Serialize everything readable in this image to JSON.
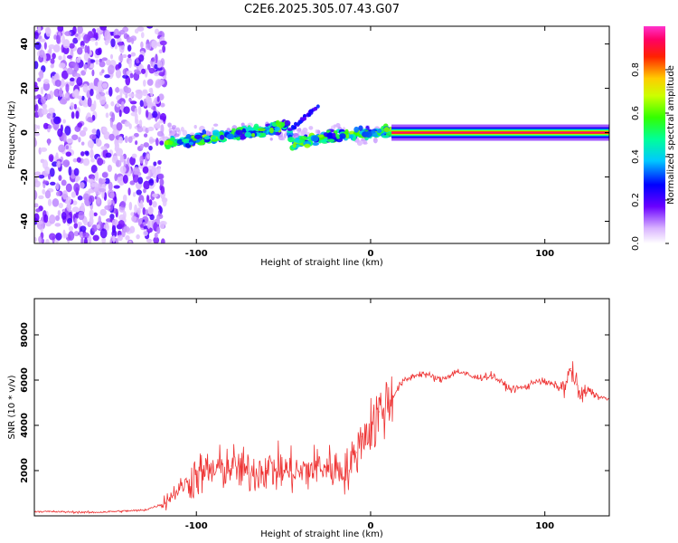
{
  "title": "C2E6.2025.305.07.43.G07",
  "colors": {
    "background": "#ffffff",
    "snr_line": "#ee3333",
    "spectrum_low": "#e6ccff",
    "spectrum_mid": "#4400ee"
  },
  "chart_data": [
    {
      "type": "heatmap",
      "title": "C2E6.2025.305.07.43.G07",
      "xlabel": "Height of straight line (km)",
      "ylabel": "Frequency (Hz)",
      "xlim": [
        -193,
        137
      ],
      "ylim": [
        -50,
        48
      ],
      "xticks": [
        -100,
        0,
        100
      ],
      "yticks": [
        -40,
        -20,
        0,
        20,
        40
      ],
      "grid": false,
      "colorbar": {
        "label": "Normalized spectral amplitude",
        "range": [
          0,
          1
        ],
        "ticks": [
          "0.0",
          "0.2",
          "0.4",
          "0.6",
          "0.8"
        ],
        "colormap": "rainbow (white-violet-blue-cyan-green-yellow-red-magenta)"
      },
      "features": {
        "noise_region_x": [
          -193,
          -118
        ],
        "signal_track": [
          {
            "x": -117,
            "y": -5
          },
          {
            "x": -100,
            "y": -3
          },
          {
            "x": -80,
            "y": -1
          },
          {
            "x": -60,
            "y": 1
          },
          {
            "x": -48,
            "y": 4
          },
          {
            "x": -45,
            "y": -5
          },
          {
            "x": -30,
            "y": -3
          },
          {
            "x": -15,
            "y": -1
          },
          {
            "x": 0,
            "y": 0
          },
          {
            "x": 12,
            "y": 0
          },
          {
            "x": 137,
            "y": 0
          }
        ],
        "branch_track": [
          {
            "x": -45,
            "y": 2
          },
          {
            "x": -30,
            "y": 12
          }
        ],
        "steady_tone_x": [
          12,
          137
        ],
        "steady_tone_freq": 0,
        "steady_tone_amplitude": 0.95
      }
    },
    {
      "type": "line",
      "xlabel": "Height of straight line (km)",
      "ylabel": "SNR (10 * v/v)",
      "xlim": [
        -193,
        137
      ],
      "ylim": [
        0,
        9600
      ],
      "xticks": [
        -100,
        0,
        100
      ],
      "yticks": [
        2000,
        4000,
        6000,
        8000
      ],
      "grid": false,
      "series": [
        {
          "x": [
            -193,
            -160,
            -130,
            -120,
            -110,
            -100,
            -90,
            -80,
            -70,
            -60,
            -50,
            -40,
            -30,
            -20,
            -13,
            -8,
            -5,
            0,
            5,
            10,
            12,
            18,
            25,
            30,
            40,
            50,
            60,
            70,
            80,
            90,
            95,
            100,
            105,
            110,
            113,
            115,
            118,
            121,
            125,
            130,
            137
          ],
          "y": [
            200,
            150,
            250,
            500,
            1200,
            1800,
            2000,
            2200,
            1900,
            2100,
            2000,
            1900,
            2200,
            2100,
            2000,
            2800,
            3500,
            3800,
            4600,
            5000,
            5200,
            5900,
            6200,
            6300,
            6000,
            6400,
            6100,
            6200,
            5600,
            5700,
            6000,
            5900,
            5800,
            5600,
            6000,
            6500,
            5800,
            5200,
            5600,
            5300,
            5100
          ]
        }
      ]
    }
  ]
}
